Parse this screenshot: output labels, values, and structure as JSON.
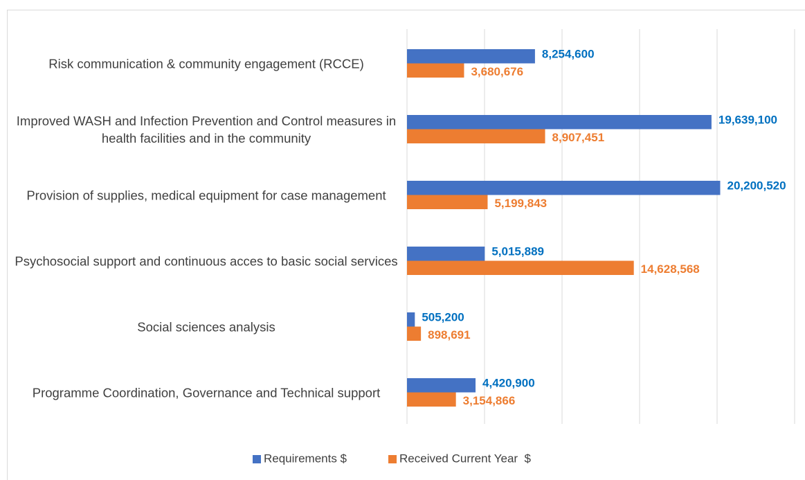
{
  "chart_data": {
    "type": "bar",
    "orientation": "horizontal",
    "categories": [
      "Risk communication & community engagement (RCCE)",
      "Improved WASH and Infection Prevention and Control measures in health facilities and in the community",
      "Provision of supplies, medical equipment for case management",
      "Psychosocial support and continuous acces to basic social services",
      "Social sciences analysis",
      "Programme Coordination, Governance and Technical support"
    ],
    "series": [
      {
        "name": "Requirements $",
        "color": "#4472c4",
        "label_color": "#0070c0",
        "values": [
          8254600,
          19639100,
          20200520,
          5015889,
          505200,
          4420900
        ],
        "value_labels": [
          "8,254,600",
          "19,639,100",
          "20,200,520",
          "5,015,889",
          "505,200",
          "4,420,900"
        ]
      },
      {
        "name": "Received Current Year  $",
        "color": "#ed7d31",
        "label_color": "#ed7d31",
        "values": [
          3680676,
          8907451,
          5199843,
          14628568,
          898691,
          3154866
        ],
        "value_labels": [
          "3,680,676",
          "8,907,451",
          "5,199,843",
          "14,628,568",
          "898,691",
          "3,154,866"
        ]
      }
    ],
    "xlim": [
      0,
      25000000
    ],
    "xticks": [
      0,
      5000000,
      10000000,
      15000000,
      20000000,
      25000000
    ],
    "grid": true,
    "legend": "bottom"
  }
}
